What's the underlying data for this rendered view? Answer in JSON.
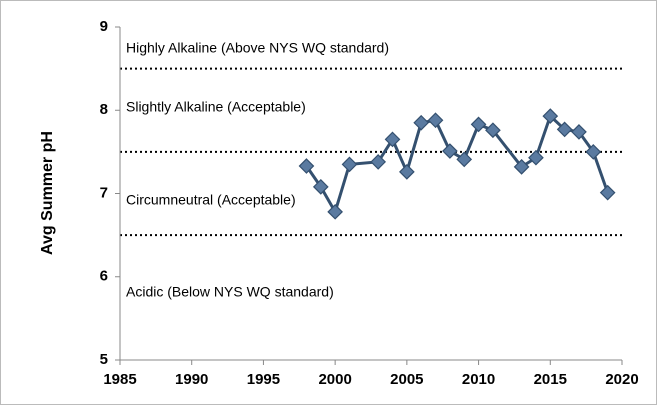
{
  "chart_data": {
    "type": "line",
    "y_label": "Avg Summer pH",
    "x": [
      1998,
      1999,
      2000,
      2001,
      2003,
      2004,
      2005,
      2006,
      2007,
      2008,
      2009,
      2010,
      2011,
      2013,
      2014,
      2015,
      2016,
      2017,
      2018,
      2019
    ],
    "values": [
      7.33,
      7.08,
      6.78,
      7.35,
      7.38,
      7.65,
      7.26,
      7.85,
      7.88,
      7.51,
      7.41,
      7.83,
      7.76,
      7.32,
      7.43,
      7.93,
      7.77,
      7.74,
      7.5,
      7.01
    ],
    "color": "#34506f",
    "marker_color": "#5a7aa0",
    "xlim": [
      1985,
      2020
    ],
    "xticks": [
      1985,
      1990,
      1995,
      2000,
      2005,
      2010,
      2015,
      2020
    ],
    "ylim": [
      5,
      9
    ],
    "yticks": [
      5,
      6,
      7,
      8,
      9
    ],
    "grid": false,
    "reference_lines": [
      8.5,
      7.5,
      6.5
    ],
    "annotations": [
      "Highly Alkaline (Above NYS WQ standard)",
      "Slightly Alkaline (Acceptable)",
      "Circumneutral (Acceptable)",
      "Acidic (Below NYS WQ standard)"
    ]
  }
}
